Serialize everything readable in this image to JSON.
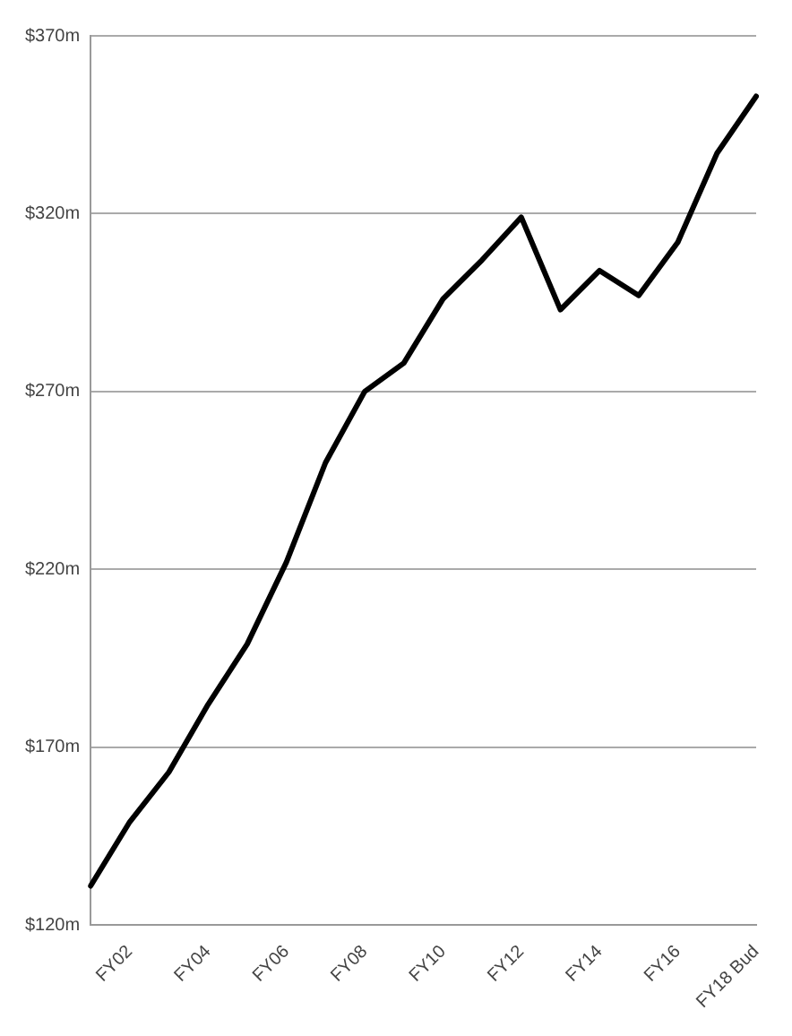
{
  "chart_data": {
    "type": "line",
    "categories": [
      null,
      "FY02",
      null,
      "FY04",
      null,
      "FY06",
      null,
      "FY08",
      null,
      "FY10",
      null,
      "FY12",
      null,
      "FY14",
      null,
      "FY16",
      null,
      "FY18 Bud"
    ],
    "series": [
      {
        "color": "#000000",
        "values": [
          131,
          149,
          163,
          182,
          199,
          222,
          250,
          270,
          278,
          296,
          307,
          319,
          293,
          304,
          297,
          312,
          337,
          353
        ]
      }
    ],
    "ylim": [
      120,
      370
    ],
    "yticks": [
      {
        "value": 120,
        "label": "$120m"
      },
      {
        "value": 170,
        "label": "$170m"
      },
      {
        "value": 220,
        "label": "$220m"
      },
      {
        "value": 270,
        "label": "$270m"
      },
      {
        "value": 320,
        "label": "$320m"
      },
      {
        "value": 370,
        "label": "$370m"
      }
    ],
    "grid": "y",
    "legend": false,
    "marker": "none",
    "line_style": "solid"
  }
}
